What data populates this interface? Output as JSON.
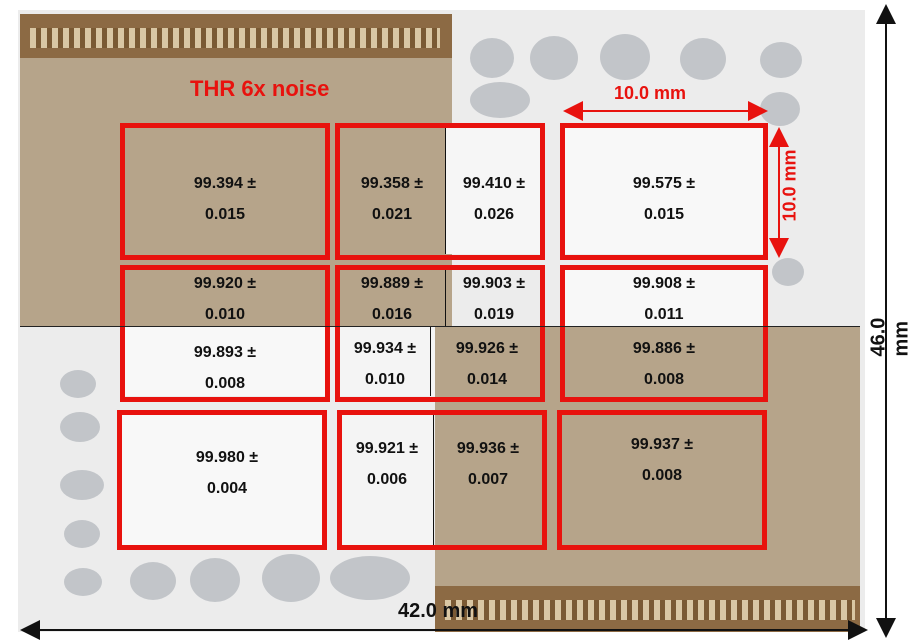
{
  "title": "THR 6x noise",
  "dim_width_small": "10.0 mm",
  "dim_height_small": "10.0 mm",
  "dim_height_total": "46.0 mm",
  "dim_width_total": "42.0 mm",
  "colors": {
    "frame": "#e8120e",
    "chip": "#ececec",
    "pad": "#8c6a44",
    "sensor": "#b6a48a"
  },
  "cells": {
    "c00": {
      "v": "99.394 ±",
      "e": "0.015"
    },
    "c01a": {
      "v": "99.358 ±",
      "e": "0.021"
    },
    "c01b": {
      "v": "99.410 ±",
      "e": "0.026"
    },
    "c02": {
      "v": "99.575 ±",
      "e": "0.015"
    },
    "c10a": {
      "v": "99.920 ±",
      "e": "0.010"
    },
    "c10b": {
      "v": "99.893 ±",
      "e": "0.008"
    },
    "c11a": {
      "v": "99.889 ±",
      "e": "0.016"
    },
    "c11b": {
      "v": "99.903 ±",
      "e": "0.019"
    },
    "c11c": {
      "v": "99.934 ±",
      "e": "0.010"
    },
    "c11d": {
      "v": "99.926 ±",
      "e": "0.014"
    },
    "c12a": {
      "v": "99.908 ±",
      "e": "0.011"
    },
    "c12b": {
      "v": "99.886 ±",
      "e": "0.008"
    },
    "c20": {
      "v": "99.980 ±",
      "e": "0.004"
    },
    "c21a": {
      "v": "99.921 ±",
      "e": "0.006"
    },
    "c21b": {
      "v": "99.936 ±",
      "e": "0.007"
    },
    "c22": {
      "v": "99.937 ±",
      "e": "0.008"
    }
  }
}
